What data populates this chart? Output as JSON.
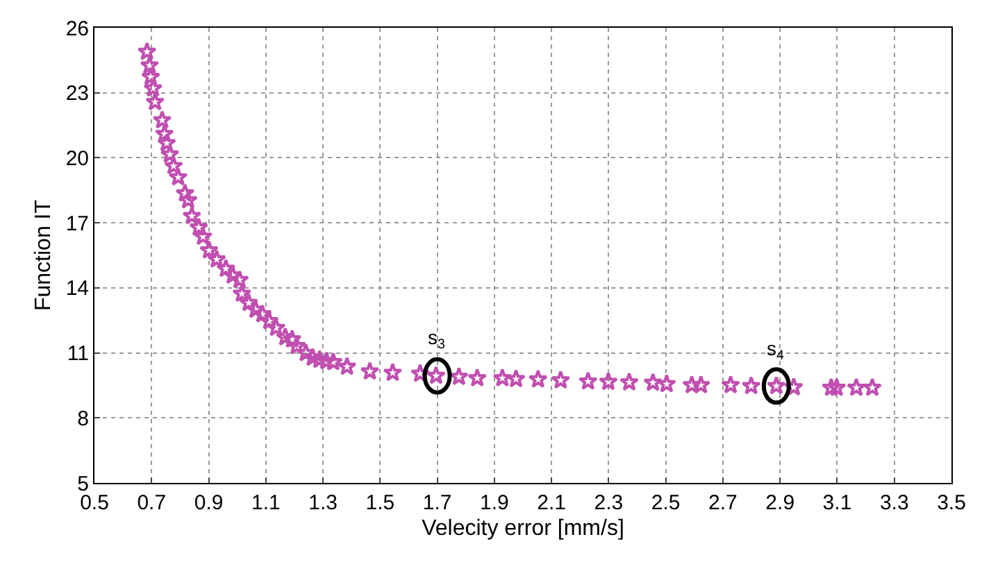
{
  "chart_data": {
    "type": "scatter",
    "xlabel": "Velecity error [mm/s]",
    "ylabel": "Function IT",
    "x": [
      0.684,
      0.693,
      0.697,
      0.705,
      0.712,
      0.737,
      0.745,
      0.753,
      0.764,
      0.777,
      0.793,
      0.817,
      0.828,
      0.841,
      0.865,
      0.88,
      0.901,
      0.928,
      0.96,
      0.984,
      1.008,
      1.016,
      1.04,
      1.064,
      1.088,
      1.112,
      1.136,
      1.168,
      1.192,
      1.208,
      1.24,
      1.264,
      1.288,
      1.312,
      1.336,
      1.384,
      1.464,
      1.544,
      1.64,
      1.696,
      1.776,
      1.84,
      1.928,
      1.976,
      2.053,
      2.132,
      2.228,
      2.299,
      2.372,
      2.455,
      2.503,
      2.591,
      2.623,
      2.727,
      2.799,
      2.887,
      2.948,
      3.079,
      3.098,
      3.167,
      3.223
    ],
    "series": [
      {
        "color": "#c04fb0",
        "values": [
          24.89,
          24.26,
          23.73,
          23.2,
          22.57,
          21.73,
          21.1,
          20.67,
          20.15,
          19.62,
          19.1,
          18.36,
          18.04,
          17.31,
          16.78,
          16.36,
          15.73,
          15.31,
          14.88,
          14.57,
          14.36,
          13.73,
          13.3,
          12.99,
          12.78,
          12.46,
          12.15,
          11.72,
          11.62,
          11.31,
          10.99,
          10.78,
          10.68,
          10.61,
          10.57,
          10.36,
          10.14,
          10.08,
          10.04,
          9.94,
          9.89,
          9.83,
          9.83,
          9.79,
          9.77,
          9.73,
          9.68,
          9.66,
          9.64,
          9.62,
          9.56,
          9.51,
          9.51,
          9.51,
          9.47,
          9.47,
          9.41,
          9.39,
          9.39,
          9.39,
          9.39
        ]
      }
    ],
    "xlim": [
      0.5,
      3.5
    ],
    "xticks": [
      0.5,
      0.7,
      0.9,
      1.1,
      1.3,
      1.5,
      1.7,
      1.9,
      2.1,
      2.3,
      2.5,
      2.7,
      2.9,
      3.1,
      3.3,
      3.5
    ],
    "ylim": [
      5,
      26
    ],
    "yticks": [
      5,
      8,
      11,
      14,
      17,
      20,
      23,
      26
    ],
    "grid": true,
    "marker": "star",
    "annotations": [
      {
        "text": "s$_{3}$",
        "x": 1.7,
        "y": 9.94
      },
      {
        "text": "s$_{4}$",
        "x": 2.887,
        "y": 9.47
      }
    ]
  }
}
